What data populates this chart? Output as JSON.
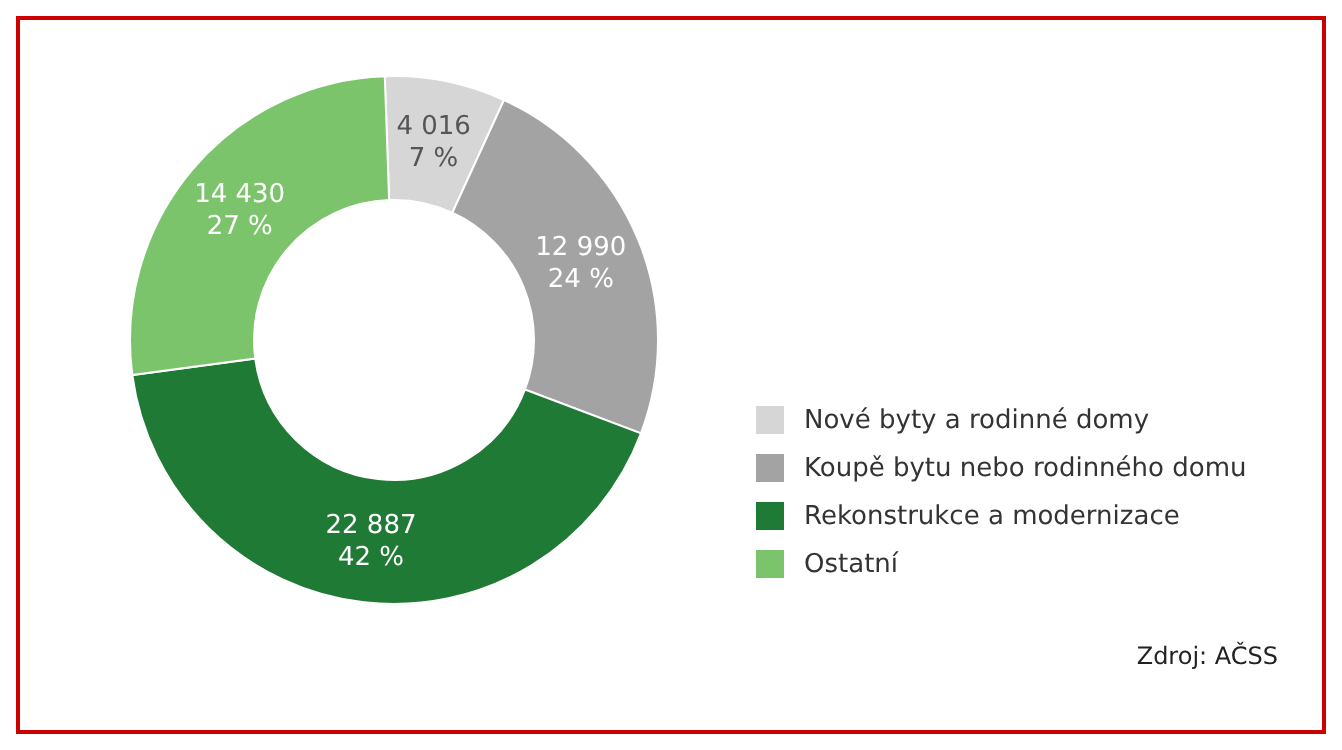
{
  "chart_data": {
    "type": "donut",
    "categories": [
      "Nové byty a rodinné domy",
      "Koupě bytu nebo rodinného domu",
      "Rekonstrukce a modernizace",
      "Ostatní"
    ],
    "values": [
      4016,
      12990,
      22887,
      14430
    ],
    "value_labels": [
      "4 016\n7 %",
      "12 990\n24 %",
      "22 887\n42 %",
      "14 430\n27 %"
    ],
    "colors": [
      "#d6d6d6",
      "#a3a3a3",
      "#1f7a35",
      "#7cc46c"
    ],
    "legend": "right",
    "annotations": [
      "Zdroj: AČSS"
    ]
  }
}
